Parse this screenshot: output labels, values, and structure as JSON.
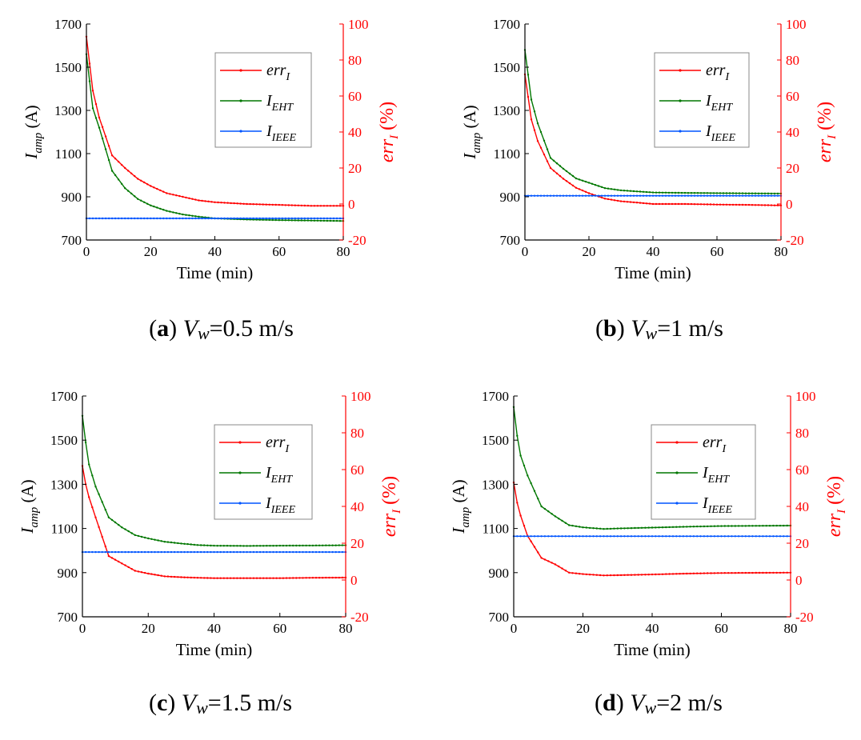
{
  "chart_data": [
    {
      "type": "line",
      "panel_letter": "a",
      "caption_prefix": "V",
      "caption_sub": "w",
      "caption_value": "=0.5 m/s",
      "xlabel": "Time (min)",
      "ylabel_left_main": "I",
      "ylabel_left_sub": "amp",
      "ylabel_left_unit": " (A)",
      "ylabel_right_main": "err",
      "ylabel_right_sub": "I",
      "ylabel_right_unit": " (%)",
      "xlim": [
        0,
        80
      ],
      "xticks": [
        0,
        20,
        40,
        60,
        80
      ],
      "ylim_left": [
        700,
        1700
      ],
      "yticks_left": [
        700,
        900,
        1100,
        1300,
        1500,
        1700
      ],
      "ylim_right": [
        -20,
        100
      ],
      "yticks_right": [
        -20,
        0,
        20,
        40,
        60,
        80,
        100
      ],
      "legend_position": "top-right",
      "series": [
        {
          "name": "err",
          "sub": "I",
          "axis": "right",
          "color": "#ff0000",
          "x": [
            0,
            2,
            4,
            8,
            12,
            16,
            20,
            25,
            30,
            35,
            40,
            50,
            60,
            70,
            80
          ],
          "values": [
            93,
            63,
            48,
            27,
            20,
            14,
            10,
            6,
            4,
            2,
            1,
            0,
            -0.5,
            -1,
            -1
          ]
        },
        {
          "name": "I",
          "sub": "EHT",
          "axis": "left",
          "color": "#007700",
          "x": [
            0,
            2,
            4,
            8,
            12,
            16,
            20,
            25,
            30,
            35,
            40,
            50,
            60,
            70,
            80
          ],
          "values": [
            1560,
            1310,
            1220,
            1020,
            940,
            890,
            860,
            835,
            818,
            808,
            800,
            795,
            792,
            790,
            788
          ]
        },
        {
          "name": "I",
          "sub": "IEEE",
          "axis": "left",
          "color": "#0055ff",
          "x": [
            0,
            80
          ],
          "values": [
            800,
            800
          ]
        }
      ]
    },
    {
      "type": "line",
      "panel_letter": "b",
      "caption_prefix": "V",
      "caption_sub": "w",
      "caption_value": "=1 m/s",
      "xlabel": "Time (min)",
      "ylabel_left_main": "I",
      "ylabel_left_sub": "amp",
      "ylabel_left_unit": " (A)",
      "ylabel_right_main": "err",
      "ylabel_right_sub": "I",
      "ylabel_right_unit": " (%)",
      "xlim": [
        0,
        80
      ],
      "xticks": [
        0,
        20,
        40,
        60,
        80
      ],
      "ylim_left": [
        700,
        1700
      ],
      "yticks_left": [
        700,
        900,
        1100,
        1300,
        1500,
        1700
      ],
      "ylim_right": [
        -20,
        100
      ],
      "yticks_right": [
        -20,
        0,
        20,
        40,
        60,
        80,
        100
      ],
      "legend_position": "top-right",
      "series": [
        {
          "name": "err",
          "sub": "I",
          "axis": "right",
          "color": "#ff0000",
          "x": [
            0,
            2,
            4,
            8,
            12,
            16,
            20,
            25,
            30,
            35,
            40,
            50,
            60,
            70,
            80
          ],
          "values": [
            72,
            47,
            35,
            20,
            14,
            9,
            6,
            3,
            1.5,
            0.8,
            0,
            0,
            -0.3,
            -0.5,
            -0.8
          ]
        },
        {
          "name": "I",
          "sub": "EHT",
          "axis": "left",
          "color": "#007700",
          "x": [
            0,
            2,
            4,
            8,
            12,
            16,
            20,
            25,
            30,
            35,
            40,
            50,
            60,
            70,
            80
          ],
          "values": [
            1580,
            1350,
            1240,
            1080,
            1030,
            985,
            965,
            940,
            930,
            925,
            920,
            918,
            917,
            916,
            915
          ]
        },
        {
          "name": "I",
          "sub": "IEEE",
          "axis": "left",
          "color": "#0055ff",
          "x": [
            0,
            80
          ],
          "values": [
            905,
            905
          ]
        }
      ]
    },
    {
      "type": "line",
      "panel_letter": "c",
      "caption_prefix": "V",
      "caption_sub": "w",
      "caption_value": "=1.5 m/s",
      "xlabel": "Time (min)",
      "ylabel_left_main": "I",
      "ylabel_left_sub": "amp",
      "ylabel_left_unit": " (A)",
      "ylabel_right_main": "err",
      "ylabel_right_sub": "I",
      "ylabel_right_unit": " (%)",
      "xlim": [
        0,
        80
      ],
      "xticks": [
        0,
        20,
        40,
        60,
        80
      ],
      "ylim_left": [
        700,
        1700
      ],
      "yticks_left": [
        700,
        900,
        1100,
        1300,
        1500,
        1700
      ],
      "ylim_right": [
        -20,
        100
      ],
      "yticks_right": [
        -20,
        0,
        20,
        40,
        60,
        80,
        100
      ],
      "legend_position": "top-right",
      "series": [
        {
          "name": "err",
          "sub": "I",
          "axis": "right",
          "color": "#ff0000",
          "x": [
            0,
            1,
            2,
            4,
            8,
            12,
            16,
            20,
            25,
            30,
            35,
            40,
            50,
            60,
            70,
            80
          ],
          "values": [
            62,
            52,
            45,
            34,
            13,
            9,
            5,
            3.5,
            2,
            1.5,
            1.2,
            1,
            1,
            1,
            1.2,
            1.3
          ]
        },
        {
          "name": "I",
          "sub": "EHT",
          "axis": "left",
          "color": "#007700",
          "x": [
            0,
            1,
            2,
            4,
            8,
            12,
            16,
            20,
            25,
            30,
            35,
            40,
            50,
            60,
            70,
            80
          ],
          "values": [
            1610,
            1490,
            1390,
            1290,
            1150,
            1105,
            1070,
            1055,
            1040,
            1032,
            1025,
            1022,
            1021,
            1022,
            1023,
            1024
          ]
        },
        {
          "name": "I",
          "sub": "IEEE",
          "axis": "left",
          "color": "#0055ff",
          "x": [
            0,
            80
          ],
          "values": [
            993,
            993
          ]
        }
      ]
    },
    {
      "type": "line",
      "panel_letter": "d",
      "caption_prefix": "V",
      "caption_sub": "w",
      "caption_value": "=2 m/s",
      "xlabel": "Time (min)",
      "ylabel_left_main": "I",
      "ylabel_left_sub": "amp",
      "ylabel_left_unit": " (A)",
      "ylabel_right_main": "err",
      "ylabel_right_sub": "I",
      "ylabel_right_unit": " (%)",
      "xlim": [
        0,
        80
      ],
      "xticks": [
        0,
        20,
        40,
        60,
        80
      ],
      "ylim_left": [
        700,
        1700
      ],
      "yticks_left": [
        700,
        900,
        1100,
        1300,
        1500,
        1700
      ],
      "ylim_right": [
        -20,
        100
      ],
      "yticks_right": [
        -20,
        0,
        20,
        40,
        60,
        80,
        100
      ],
      "legend_position": "top-right",
      "series": [
        {
          "name": "err",
          "sub": "I",
          "axis": "right",
          "color": "#ff0000",
          "x": [
            0,
            1,
            2,
            4,
            8,
            12,
            16,
            20,
            26,
            30,
            40,
            50,
            60,
            70,
            80
          ],
          "values": [
            53,
            42,
            35,
            24,
            12,
            8.5,
            4,
            3.2,
            2.5,
            2.6,
            3,
            3.5,
            3.8,
            3.9,
            4
          ]
        },
        {
          "name": "I",
          "sub": "EHT",
          "axis": "left",
          "color": "#007700",
          "x": [
            0,
            1,
            2,
            4,
            8,
            12,
            16,
            20,
            26,
            30,
            40,
            50,
            60,
            70,
            80
          ],
          "values": [
            1650,
            1520,
            1430,
            1340,
            1200,
            1155,
            1115,
            1105,
            1098,
            1100,
            1104,
            1108,
            1111,
            1112,
            1113
          ]
        },
        {
          "name": "I",
          "sub": "IEEE",
          "axis": "left",
          "color": "#0055ff",
          "x": [
            0,
            80
          ],
          "values": [
            1065,
            1065
          ]
        }
      ]
    }
  ]
}
